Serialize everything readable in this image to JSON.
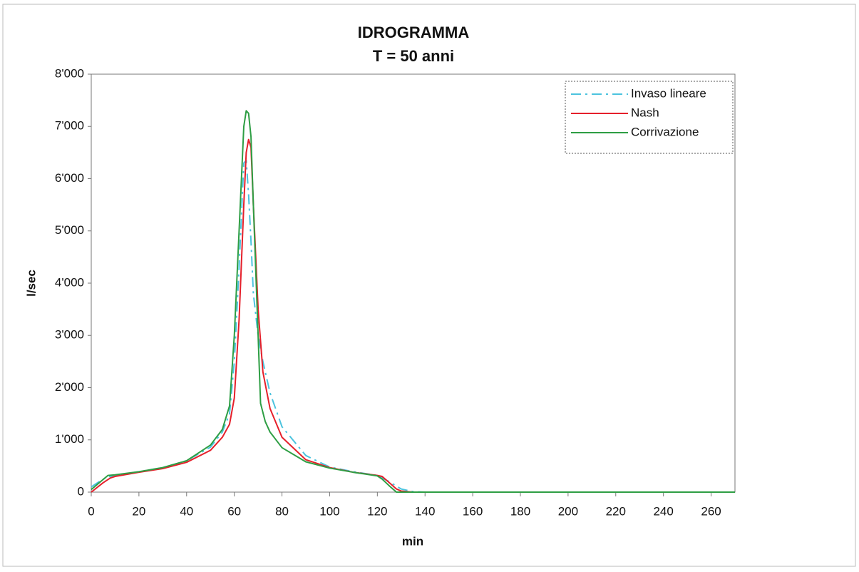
{
  "chart_data": {
    "type": "line",
    "title": "IDROGRAMMA",
    "subtitle": "T = 50 anni",
    "x_label": "min",
    "y_label": "l/sec",
    "xlim": [
      0,
      270
    ],
    "xticks": [
      0,
      20,
      40,
      60,
      80,
      100,
      120,
      140,
      160,
      180,
      200,
      220,
      240,
      260
    ],
    "ylim": [
      0,
      8000
    ],
    "yticks": [
      0,
      {
        "value": 1000,
        "label": "1'000"
      },
      {
        "value": 2000,
        "label": "2'000"
      },
      {
        "value": 3000,
        "label": "3'000"
      },
      {
        "value": 4000,
        "label": "4'000"
      },
      {
        "value": 5000,
        "label": "5'000"
      },
      {
        "value": 6000,
        "label": "6'000"
      },
      {
        "value": 7000,
        "label": "7'000"
      },
      {
        "value": 8000,
        "label": "8'000"
      }
    ],
    "grid": false,
    "legend": "top-right",
    "series": [
      {
        "name": "Invaso lineare",
        "color": "#4cc3de",
        "dash": "dashdot",
        "x": [
          0,
          5,
          8,
          10,
          20,
          30,
          40,
          50,
          55,
          58,
          60,
          62,
          64,
          65,
          66,
          67,
          68,
          70,
          72,
          75,
          80,
          90,
          100,
          110,
          120,
          125,
          130,
          135,
          140,
          270
        ],
        "values": [
          100,
          250,
          300,
          320,
          390,
          470,
          600,
          860,
          1150,
          1500,
          2500,
          4300,
          6300,
          6350,
          5700,
          4800,
          3800,
          3000,
          2500,
          1900,
          1250,
          700,
          480,
          390,
          320,
          200,
          60,
          10,
          0,
          0
        ]
      },
      {
        "name": "Nash",
        "color": "#e5202b",
        "dash": "solid",
        "x": [
          0,
          5,
          8,
          10,
          20,
          30,
          40,
          50,
          55,
          58,
          60,
          62,
          64,
          65,
          66,
          67,
          68,
          70,
          72,
          75,
          80,
          90,
          100,
          110,
          120,
          122,
          125,
          128,
          130,
          135,
          270
        ],
        "values": [
          0,
          180,
          270,
          300,
          380,
          450,
          570,
          800,
          1050,
          1300,
          1800,
          3300,
          5500,
          6500,
          6750,
          6600,
          5500,
          3500,
          2300,
          1600,
          1050,
          620,
          470,
          380,
          320,
          300,
          180,
          60,
          20,
          0,
          0
        ]
      },
      {
        "name": "Corrivazione",
        "color": "#2e9e44",
        "dash": "solid",
        "x": [
          0,
          7,
          10,
          20,
          30,
          40,
          50,
          55,
          58,
          60,
          62,
          64,
          65,
          66,
          67,
          68,
          70,
          71,
          73,
          75,
          80,
          90,
          100,
          110,
          120,
          122,
          125,
          128,
          270
        ],
        "values": [
          50,
          320,
          330,
          390,
          470,
          600,
          900,
          1200,
          1650,
          3000,
          5000,
          7000,
          7300,
          7250,
          6800,
          5500,
          3000,
          1700,
          1350,
          1150,
          850,
          580,
          460,
          380,
          310,
          250,
          120,
          0,
          0
        ]
      }
    ]
  }
}
